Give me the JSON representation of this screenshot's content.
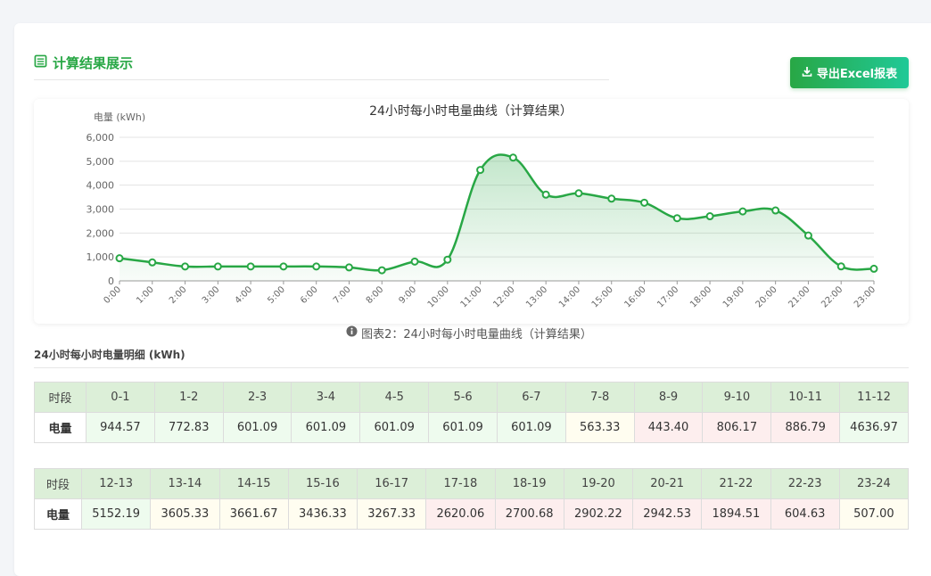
{
  "header": {
    "title": "计算结果展示",
    "export_label": "导出Excel报表"
  },
  "chart_data": {
    "type": "line",
    "title": "24小时每小时电量曲线（计算结果）",
    "ylabel": "电量 (kWh)",
    "xlabel": "",
    "ylim": [
      0,
      6000
    ],
    "yticks": [
      "0",
      "1,000",
      "2,000",
      "3,000",
      "4,000",
      "5,000",
      "6,000"
    ],
    "categories": [
      "0:00",
      "1:00",
      "2:00",
      "3:00",
      "4:00",
      "5:00",
      "6:00",
      "7:00",
      "8:00",
      "9:00",
      "10:00",
      "11:00",
      "12:00",
      "13:00",
      "14:00",
      "15:00",
      "16:00",
      "17:00",
      "18:00",
      "19:00",
      "20:00",
      "21:00",
      "22:00",
      "23:00"
    ],
    "values": [
      944.57,
      772.83,
      601.09,
      601.09,
      601.09,
      601.09,
      601.09,
      563.33,
      443.4,
      806.17,
      886.79,
      4636.97,
      5152.19,
      3605.33,
      3661.67,
      3436.33,
      3267.33,
      2620.06,
      2700.68,
      2902.22,
      2942.53,
      1894.51,
      604.63,
      507.0
    ],
    "grid": true,
    "area_fill": true,
    "line_color": "#28a745"
  },
  "caption": "图表2：24小时每小时电量曲线（计算结果）",
  "detail": {
    "title": "24小时每小时电量明细 (kWh)",
    "row_header_label": "时段",
    "row_value_label": "电量",
    "table1": [
      {
        "period": "0-1",
        "value": "944.57",
        "color": "green"
      },
      {
        "period": "1-2",
        "value": "772.83",
        "color": "green"
      },
      {
        "period": "2-3",
        "value": "601.09",
        "color": "green"
      },
      {
        "period": "3-4",
        "value": "601.09",
        "color": "green"
      },
      {
        "period": "4-5",
        "value": "601.09",
        "color": "green"
      },
      {
        "period": "5-6",
        "value": "601.09",
        "color": "green"
      },
      {
        "period": "6-7",
        "value": "601.09",
        "color": "green"
      },
      {
        "period": "7-8",
        "value": "563.33",
        "color": "yellow"
      },
      {
        "period": "8-9",
        "value": "443.40",
        "color": "red"
      },
      {
        "period": "9-10",
        "value": "806.17",
        "color": "red"
      },
      {
        "period": "10-11",
        "value": "886.79",
        "color": "red"
      },
      {
        "period": "11-12",
        "value": "4636.97",
        "color": "green"
      }
    ],
    "table2": [
      {
        "period": "12-13",
        "value": "5152.19",
        "color": "green"
      },
      {
        "period": "13-14",
        "value": "3605.33",
        "color": "yellow"
      },
      {
        "period": "14-15",
        "value": "3661.67",
        "color": "yellow"
      },
      {
        "period": "15-16",
        "value": "3436.33",
        "color": "yellow"
      },
      {
        "period": "16-17",
        "value": "3267.33",
        "color": "yellow"
      },
      {
        "period": "17-18",
        "value": "2620.06",
        "color": "red"
      },
      {
        "period": "18-19",
        "value": "2700.68",
        "color": "red"
      },
      {
        "period": "19-20",
        "value": "2902.22",
        "color": "red"
      },
      {
        "period": "20-21",
        "value": "2942.53",
        "color": "red"
      },
      {
        "period": "21-22",
        "value": "1894.51",
        "color": "red"
      },
      {
        "period": "22-23",
        "value": "604.63",
        "color": "red"
      },
      {
        "period": "23-24",
        "value": "507.00",
        "color": "yellow"
      }
    ]
  },
  "icons": {
    "title_icon": "table-list-icon",
    "export_icon": "download-icon",
    "caption_icon": "info-circle-icon"
  }
}
